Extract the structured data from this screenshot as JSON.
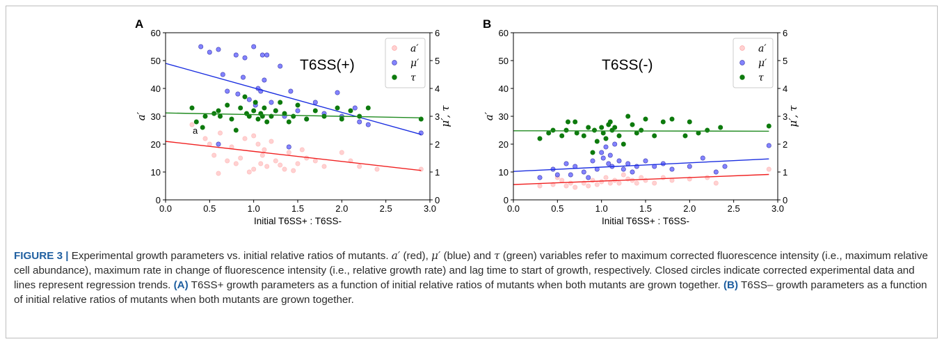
{
  "caption": {
    "label": "FIGURE 3 |",
    "s1": " Experimental growth parameters vs. initial relative ratios of mutants. ",
    "v_a": "a′",
    "s2": " (red), ",
    "v_mu": "μ′",
    "s3": " (blue) and ",
    "v_tau": "τ",
    "s4": " (green) variables refer to maximum corrected fluorescence intensity (i.e., maximum relative cell abundance), maximum rate in change of fluorescence intensity (i.e., relative growth rate) and lag time to start of growth, respectively. Closed circles indicate corrected experimental data and lines represent regression trends. ",
    "pa": "(A)",
    "s5": " T6SS+ growth parameters as a function of initial relative ratios of mutants when both mutants are grown together. ",
    "pb": "(B)",
    "s6": " T6SS– growth parameters as a function of initial relative ratios of mutants when both mutants are grown together."
  },
  "colors": {
    "red": "#ff9a9a",
    "red_line": "#f02020",
    "blue": "#5a5aff",
    "blue_line": "#1a2ee0",
    "green": "#0d7a0d",
    "green_line": "#1f8a1f"
  },
  "chart_data": [
    {
      "type": "scatter",
      "panel": "A",
      "annotation": "T6SS(+)",
      "stray_label": "a",
      "xlabel": "Initial T6SS+ : T6SS-",
      "ylabel_left": "a′",
      "ylabel_right": "μ′, τ",
      "xlim": [
        0.0,
        3.0
      ],
      "ylim_left": [
        0,
        60
      ],
      "ylim_right": [
        0,
        6
      ],
      "xticks": [
        "0.0",
        "0.5",
        "1.0",
        "1.5",
        "2.0",
        "2.5",
        "3.0"
      ],
      "yticks_left": [
        "0",
        "10",
        "20",
        "30",
        "40",
        "50",
        "60"
      ],
      "yticks_right": [
        "0",
        "1",
        "2",
        "3",
        "4",
        "5",
        "6"
      ],
      "legend": {
        "position": "top-right",
        "entries": [
          "a′",
          "μ′",
          "τ"
        ]
      },
      "series": [
        {
          "name": "a′",
          "axis": "left",
          "color": "red",
          "points": [
            [
              0.3,
              27
            ],
            [
              0.45,
              22
            ],
            [
              0.55,
              16
            ],
            [
              0.6,
              9.5
            ],
            [
              0.62,
              24
            ],
            [
              0.7,
              14
            ],
            [
              0.75,
              19
            ],
            [
              0.8,
              13
            ],
            [
              0.85,
              15
            ],
            [
              0.9,
              22
            ],
            [
              0.95,
              10
            ],
            [
              1.0,
              11
            ],
            [
              1.05,
              20
            ],
            [
              1.08,
              13
            ],
            [
              1.1,
              16
            ],
            [
              1.15,
              12
            ],
            [
              1.2,
              21
            ],
            [
              1.25,
              14
            ],
            [
              1.3,
              12.5
            ],
            [
              1.35,
              11
            ],
            [
              1.4,
              17
            ],
            [
              1.45,
              10.5
            ],
            [
              1.5,
              13
            ],
            [
              1.55,
              18
            ],
            [
              1.6,
              15
            ],
            [
              1.7,
              14
            ],
            [
              1.8,
              12
            ],
            [
              2.0,
              17
            ],
            [
              2.1,
              14
            ],
            [
              2.2,
              12
            ],
            [
              2.4,
              11
            ],
            [
              2.9,
              11
            ],
            [
              0.5,
              20
            ],
            [
              1.0,
              23
            ],
            [
              1.12,
              18
            ]
          ],
          "regression": {
            "intercept": 21.0,
            "slope": -3.6
          }
        },
        {
          "name": "μ′",
          "axis": "right",
          "color": "blue",
          "points": [
            [
              0.4,
              5.5
            ],
            [
              0.5,
              5.3
            ],
            [
              0.6,
              5.4
            ],
            [
              0.65,
              4.5
            ],
            [
              0.7,
              3.9
            ],
            [
              0.8,
              5.2
            ],
            [
              0.82,
              3.8
            ],
            [
              0.88,
              4.4
            ],
            [
              0.9,
              5.1
            ],
            [
              0.95,
              3.6
            ],
            [
              1.0,
              5.5
            ],
            [
              1.02,
              3.4
            ],
            [
              1.05,
              4.0
            ],
            [
              1.08,
              3.9
            ],
            [
              1.1,
              5.2
            ],
            [
              1.12,
              4.3
            ],
            [
              1.15,
              5.2
            ],
            [
              1.2,
              3.5
            ],
            [
              1.25,
              3.2
            ],
            [
              1.3,
              4.8
            ],
            [
              1.35,
              3.0
            ],
            [
              1.4,
              1.9
            ],
            [
              1.42,
              3.9
            ],
            [
              1.5,
              3.2
            ],
            [
              1.6,
              2.9
            ],
            [
              1.7,
              3.5
            ],
            [
              1.8,
              3.1
            ],
            [
              1.95,
              3.85
            ],
            [
              2.0,
              3.0
            ],
            [
              2.15,
              3.3
            ],
            [
              2.2,
              2.8
            ],
            [
              2.3,
              2.7
            ],
            [
              2.9,
              2.4
            ],
            [
              0.6,
              2.0
            ]
          ],
          "regression": {
            "intercept": 4.9,
            "slope": -0.88
          }
        },
        {
          "name": "τ",
          "axis": "right",
          "color": "green",
          "points": [
            [
              0.3,
              3.3
            ],
            [
              0.35,
              2.8
            ],
            [
              0.42,
              2.6
            ],
            [
              0.45,
              3.0
            ],
            [
              0.55,
              3.1
            ],
            [
              0.6,
              3.2
            ],
            [
              0.62,
              3.0
            ],
            [
              0.7,
              3.4
            ],
            [
              0.75,
              2.9
            ],
            [
              0.8,
              2.5
            ],
            [
              0.85,
              3.3
            ],
            [
              0.9,
              3.7
            ],
            [
              0.92,
              3.1
            ],
            [
              0.95,
              3.0
            ],
            [
              1.0,
              3.2
            ],
            [
              1.02,
              3.5
            ],
            [
              1.05,
              2.9
            ],
            [
              1.08,
              3.1
            ],
            [
              1.1,
              3.0
            ],
            [
              1.12,
              3.3
            ],
            [
              1.15,
              2.8
            ],
            [
              1.2,
              3.0
            ],
            [
              1.25,
              3.2
            ],
            [
              1.3,
              3.5
            ],
            [
              1.35,
              3.1
            ],
            [
              1.4,
              2.8
            ],
            [
              1.45,
              3.0
            ],
            [
              1.5,
              3.4
            ],
            [
              1.6,
              2.9
            ],
            [
              1.7,
              3.2
            ],
            [
              1.8,
              3.0
            ],
            [
              1.95,
              3.3
            ],
            [
              2.0,
              2.9
            ],
            [
              2.1,
              3.2
            ],
            [
              2.2,
              3.0
            ],
            [
              2.3,
              3.3
            ],
            [
              2.9,
              2.9
            ]
          ],
          "regression": {
            "intercept": 3.12,
            "slope": -0.06
          }
        }
      ]
    },
    {
      "type": "scatter",
      "panel": "B",
      "annotation": "T6SS(-)",
      "xlabel": "Initial T6SS+ : T6SS-",
      "ylabel_left": "a′",
      "ylabel_right": "μ′, τ",
      "xlim": [
        0.0,
        3.0
      ],
      "ylim_left": [
        0,
        60
      ],
      "ylim_right": [
        0,
        6
      ],
      "xticks": [
        "0.0",
        "0.5",
        "1.0",
        "1.5",
        "2.0",
        "2.5",
        "3.0"
      ],
      "yticks_left": [
        "0",
        "10",
        "20",
        "30",
        "40",
        "50",
        "60"
      ],
      "yticks_right": [
        "0",
        "1",
        "2",
        "3",
        "4",
        "5",
        "6"
      ],
      "legend": {
        "position": "top-right",
        "entries": [
          "a′",
          "μ′",
          "τ"
        ]
      },
      "series": [
        {
          "name": "a′",
          "axis": "left",
          "color": "red",
          "points": [
            [
              0.3,
              5
            ],
            [
              0.45,
              5.5
            ],
            [
              0.55,
              7
            ],
            [
              0.6,
              5
            ],
            [
              0.65,
              6
            ],
            [
              0.7,
              4.5
            ],
            [
              0.8,
              6
            ],
            [
              0.85,
              5
            ],
            [
              0.9,
              7
            ],
            [
              0.95,
              5.5
            ],
            [
              1.0,
              6.5
            ],
            [
              1.05,
              8
            ],
            [
              1.1,
              6
            ],
            [
              1.15,
              7
            ],
            [
              1.2,
              6
            ],
            [
              1.3,
              7.5
            ],
            [
              1.35,
              7
            ],
            [
              1.4,
              6
            ],
            [
              1.45,
              8
            ],
            [
              1.5,
              7
            ],
            [
              1.6,
              6
            ],
            [
              1.7,
              8
            ],
            [
              1.8,
              7
            ],
            [
              2.0,
              7.5
            ],
            [
              2.2,
              8
            ],
            [
              2.3,
              6
            ],
            [
              2.9,
              11
            ],
            [
              0.5,
              8
            ],
            [
              1.25,
              9
            ]
          ],
          "regression": {
            "intercept": 5.5,
            "slope": 1.25
          }
        },
        {
          "name": "μ′",
          "axis": "right",
          "color": "blue",
          "points": [
            [
              0.3,
              0.8
            ],
            [
              0.45,
              1.1
            ],
            [
              0.5,
              0.9
            ],
            [
              0.6,
              1.3
            ],
            [
              0.65,
              0.9
            ],
            [
              0.7,
              1.2
            ],
            [
              0.8,
              1.0
            ],
            [
              0.85,
              0.8
            ],
            [
              0.9,
              1.4
            ],
            [
              0.95,
              1.1
            ],
            [
              1.0,
              1.7
            ],
            [
              1.02,
              1.5
            ],
            [
              1.05,
              1.9
            ],
            [
              1.08,
              1.3
            ],
            [
              1.1,
              1.6
            ],
            [
              1.12,
              1.2
            ],
            [
              1.15,
              2.0
            ],
            [
              1.2,
              1.4
            ],
            [
              1.25,
              1.1
            ],
            [
              1.3,
              1.3
            ],
            [
              1.35,
              1.0
            ],
            [
              1.4,
              1.2
            ],
            [
              1.5,
              1.4
            ],
            [
              1.6,
              1.2
            ],
            [
              1.7,
              1.3
            ],
            [
              1.8,
              1.1
            ],
            [
              2.0,
              1.2
            ],
            [
              2.15,
              1.5
            ],
            [
              2.3,
              1.0
            ],
            [
              2.4,
              1.2
            ],
            [
              2.9,
              1.95
            ]
          ],
          "regression": {
            "intercept": 1.02,
            "slope": 0.155
          }
        },
        {
          "name": "τ",
          "axis": "right",
          "color": "green",
          "points": [
            [
              0.3,
              2.2
            ],
            [
              0.4,
              2.4
            ],
            [
              0.45,
              2.5
            ],
            [
              0.55,
              2.3
            ],
            [
              0.6,
              2.5
            ],
            [
              0.62,
              2.8
            ],
            [
              0.7,
              2.8
            ],
            [
              0.72,
              2.4
            ],
            [
              0.8,
              2.3
            ],
            [
              0.85,
              2.6
            ],
            [
              0.9,
              1.7
            ],
            [
              0.92,
              2.5
            ],
            [
              0.95,
              2.1
            ],
            [
              1.0,
              2.6
            ],
            [
              1.02,
              2.4
            ],
            [
              1.05,
              2.2
            ],
            [
              1.08,
              2.7
            ],
            [
              1.1,
              2.8
            ],
            [
              1.12,
              2.5
            ],
            [
              1.15,
              2.6
            ],
            [
              1.2,
              2.3
            ],
            [
              1.25,
              2.0
            ],
            [
              1.3,
              3.0
            ],
            [
              1.35,
              2.7
            ],
            [
              1.4,
              2.4
            ],
            [
              1.45,
              2.5
            ],
            [
              1.5,
              2.9
            ],
            [
              1.6,
              2.3
            ],
            [
              1.7,
              2.8
            ],
            [
              1.8,
              2.9
            ],
            [
              1.95,
              2.3
            ],
            [
              2.0,
              2.8
            ],
            [
              2.1,
              2.4
            ],
            [
              2.2,
              2.5
            ],
            [
              2.35,
              2.6
            ],
            [
              2.9,
              2.65
            ]
          ],
          "regression": {
            "intercept": 2.48,
            "slope": -0.005
          }
        }
      ]
    }
  ]
}
